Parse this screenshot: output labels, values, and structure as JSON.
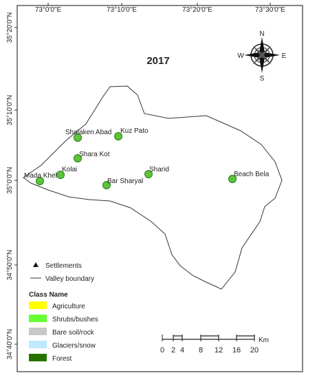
{
  "map": {
    "title": "2017",
    "top_axis": [
      "73°0'0\"E",
      "73°10'0\"E",
      "73°20'0\"E",
      "73°30'0\"E"
    ],
    "left_axis": [
      "35°20'0\"N",
      "35°10'0\"N",
      "35°0'0\"N",
      "34°50'0\"N",
      "34°40'0\"N"
    ],
    "compass": {
      "n": "N",
      "s": "S",
      "e": "E",
      "w": "W"
    },
    "settlements": [
      "Shalaken Abad",
      "Kuz Pato",
      "Shara Kot",
      "Kolai",
      "Mada Khel",
      "Bar Sharyal",
      "Sharid",
      "Beach Bela"
    ],
    "legend": {
      "settlements": "Settlements",
      "boundary": "Valley boundary",
      "class_title": "Class Name",
      "classes": [
        {
          "name": "Agriculture",
          "color": "#ffff00"
        },
        {
          "name": "Shrubs/bushes",
          "color": "#66ff33"
        },
        {
          "name": "Bare soil/rock",
          "color": "#c8c8c8"
        },
        {
          "name": "Glaciers/snow",
          "color": "#bfe9ff"
        },
        {
          "name": "Forest",
          "color": "#267300"
        }
      ]
    },
    "scale": {
      "ticks": [
        0,
        2,
        4,
        8,
        12,
        16,
        20
      ],
      "unit": "Km"
    }
  }
}
